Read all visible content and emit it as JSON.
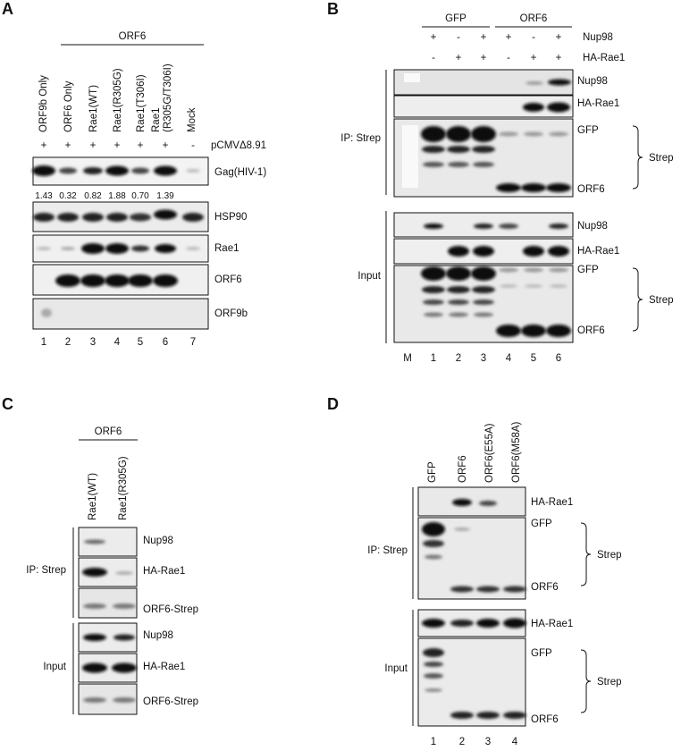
{
  "panel_a": {
    "letter": "A",
    "group_label": "ORF6",
    "lanes": [
      "ORF9b Only",
      "ORF6 Only",
      "Rae1(WT)",
      "Rae1(R305G)",
      "Rae1(T306I)",
      "Rae1\n(R305G/T306I)",
      "Mock"
    ],
    "plasmid_signs": [
      "+",
      "+",
      "+",
      "+",
      "+",
      "+",
      "-"
    ],
    "plasmid_label": "pCMVΔ8.91",
    "blots": [
      "Gag(HIV-1)",
      "HSP90",
      "Rae1",
      "ORF6",
      "ORF9b"
    ],
    "quant": [
      "1.43",
      "0.32",
      "0.82",
      "1.88",
      "0.70",
      "1.39"
    ],
    "lane_numbers": [
      "1",
      "2",
      "3",
      "4",
      "5",
      "6",
      "7"
    ]
  },
  "panel_b": {
    "letter": "B",
    "groups": [
      "GFP",
      "ORF6"
    ],
    "nup98_label": "Nup98",
    "nup98_signs": [
      "+",
      "-",
      "+",
      "+",
      "-",
      "+"
    ],
    "harae1_label": "HA-Rae1",
    "harae1_signs": [
      "-",
      "+",
      "+",
      "-",
      "+",
      "+"
    ],
    "ip_label": "IP: Strep",
    "input_label": "Input",
    "blot_labels": [
      "Nup98",
      "HA-Rae1",
      "GFP",
      "ORF6",
      "Nup98",
      "HA-Rae1",
      "GFP",
      "ORF6"
    ],
    "strep_label": "Strep",
    "lane_numbers": [
      "M",
      "1",
      "2",
      "3",
      "4",
      "5",
      "6"
    ]
  },
  "panel_c": {
    "letter": "C",
    "group_label": "ORF6",
    "lanes": [
      "Rae1(WT)",
      "Rae1(R305G)"
    ],
    "ip_label": "IP: Strep",
    "input_label": "Input",
    "blot_labels": [
      "Nup98",
      "HA-Rae1",
      "ORF6-Strep",
      "Nup98",
      "HA-Rae1",
      "ORF6-Strep"
    ]
  },
  "panel_d": {
    "letter": "D",
    "lanes": [
      "GFP",
      "ORF6",
      "ORF6(E55A)",
      "ORF6(M58A)"
    ],
    "ip_label": "IP: Strep",
    "input_label": "Input",
    "blot_labels": [
      "HA-Rae1",
      "GFP",
      "ORF6",
      "HA-Rae1",
      "GFP",
      "ORF6"
    ],
    "strep_label": "Strep",
    "lane_numbers": [
      "1",
      "2",
      "3",
      "4"
    ]
  }
}
